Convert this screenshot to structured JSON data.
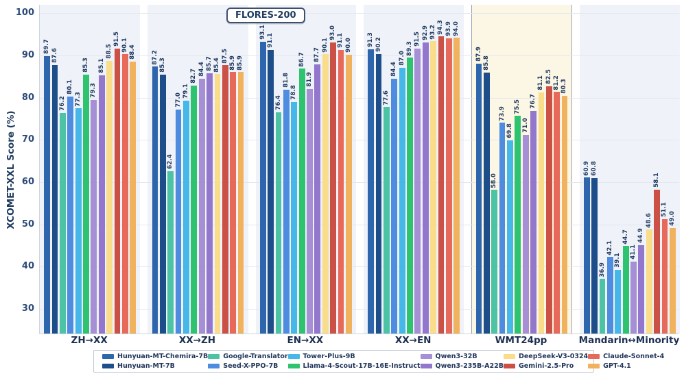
{
  "figure": {
    "title_badge": "FLORES-200",
    "ylabel": "XCOMET-XXL Score (%)"
  },
  "colors": {
    "panel_bg": "#eff2f8",
    "highlight_bg": "#fcf6e4",
    "highlight_border": "#99a3b4",
    "gridline": "#e3e8ef",
    "axis": "#ccd4de",
    "label_text": "#203a60"
  },
  "chart_data": {
    "type": "bar",
    "title": "FLORES-200",
    "ylabel": "XCOMET-XXL Score (%)",
    "ylim": [
      24,
      102
    ],
    "yticks": [
      30,
      40,
      50,
      60,
      70,
      80,
      90,
      100
    ],
    "grid": true,
    "legend_position": "bottom",
    "categories": [
      "ZH→XX",
      "XX→ZH",
      "EN→XX",
      "XX→EN",
      "WMT24pp",
      "Mandarin↔Minority"
    ],
    "highlighted_category": "WMT24pp",
    "series": [
      {
        "name": "Hunyuan-MT-Chemira-7B",
        "color": "#2e66ae",
        "pattern": "crosshatch",
        "values": [
          89.7,
          87.2,
          93.1,
          91.3,
          87.9,
          60.9
        ]
      },
      {
        "name": "Hunyuan-MT-7B",
        "color": "#1d4e8a",
        "pattern": "solid",
        "values": [
          87.6,
          85.3,
          91.1,
          90.2,
          85.8,
          60.8
        ]
      },
      {
        "name": "Google-Translator",
        "color": "#4cc3a4",
        "pattern": "solid",
        "values": [
          76.2,
          62.4,
          76.4,
          77.6,
          58.0,
          36.9
        ]
      },
      {
        "name": "Seed-X-PPO-7B",
        "color": "#4e8ce0",
        "pattern": "dots",
        "values": [
          80.1,
          77.0,
          81.8,
          84.4,
          73.9,
          42.1
        ]
      },
      {
        "name": "Tower-Plus-9B",
        "color": "#46b7e9",
        "pattern": "stripes",
        "values": [
          77.3,
          79.1,
          78.8,
          87.0,
          69.8,
          39.1
        ]
      },
      {
        "name": "Llama-4-Scout-17B-16E-Instruct",
        "color": "#2ec46f",
        "pattern": "dots",
        "values": [
          85.3,
          82.7,
          86.7,
          89.3,
          75.5,
          44.7
        ]
      },
      {
        "name": "Qwen3-32B",
        "color": "#a78fd6",
        "pattern": "solid",
        "values": [
          79.3,
          84.4,
          81.9,
          91.5,
          71.0,
          41.1
        ]
      },
      {
        "name": "Qwen3-235B-A22B",
        "color": "#9377cc",
        "pattern": "stripes",
        "values": [
          85.1,
          85.7,
          87.7,
          92.9,
          76.7,
          44.9
        ]
      },
      {
        "name": "DeepSeek-V3-0324",
        "color": "#fadd8b",
        "pattern": "stripes",
        "values": [
          88.5,
          85.4,
          90.1,
          93.2,
          81.1,
          48.6
        ]
      },
      {
        "name": "Gemini-2.5-Pro",
        "color": "#cb5045",
        "pattern": "dots",
        "values": [
          91.5,
          87.5,
          93.0,
          94.3,
          82.5,
          58.1
        ]
      },
      {
        "name": "Claude-Sonnet-4",
        "color": "#e7695a",
        "pattern": "stripes",
        "values": [
          90.1,
          85.9,
          91.1,
          93.9,
          81.2,
          51.1
        ]
      },
      {
        "name": "GPT-4.1",
        "color": "#f1b25d",
        "pattern": "solid",
        "values": [
          88.4,
          85.9,
          90.0,
          94.0,
          80.3,
          49.0
        ]
      }
    ]
  }
}
